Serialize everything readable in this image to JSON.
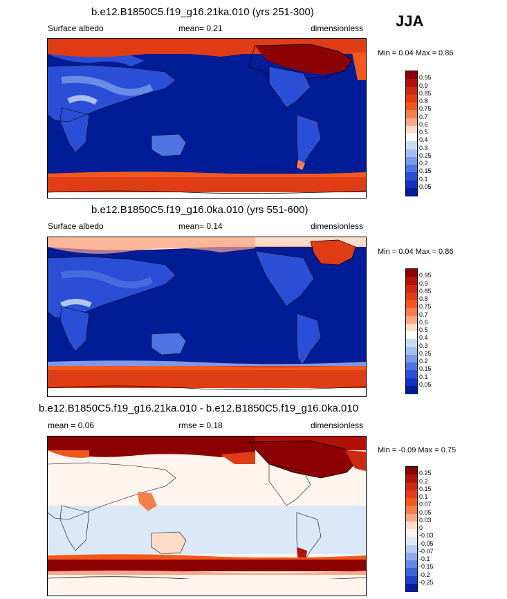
{
  "season": "JJA",
  "panels": [
    {
      "title": "b.e12.B1850C5.f19_g16.21ka.010 (yrs 251-300)",
      "left_label": "Surface albedo",
      "center_label": "mean=  0.21",
      "right_label": "dimensionless",
      "minmax": "Min =   0.04 Max =   0.86",
      "colorbar_labels": [
        "0.95",
        "0.9",
        "0.85",
        "0.8",
        "0.75",
        "0.7",
        "0.6",
        "0.5",
        "0.4",
        "0.3",
        "0.25",
        "0.2",
        "0.15",
        "0.1",
        "0.05"
      ],
      "colorbar_colors": [
        "#8b0000",
        "#b2110a",
        "#cc2a10",
        "#e03d16",
        "#f0581e",
        "#f67e4b",
        "#fba788",
        "#fddcc9",
        "#ffffff",
        "#c9dcf4",
        "#a3bff0",
        "#7b9bea",
        "#4d74e0",
        "#2a4fd6",
        "#1231c4",
        "#001b96"
      ]
    },
    {
      "title": "b.e12.B1850C5.f19_g16.0ka.010 (yrs 551-600)",
      "left_label": "Surface albedo",
      "center_label": "mean=  0.14",
      "right_label": "dimensionless",
      "minmax": "Min =   0.04 Max =   0.86",
      "colorbar_labels": [
        "0.95",
        "0.9",
        "0.85",
        "0.8",
        "0.75",
        "0.7",
        "0.6",
        "0.5",
        "0.4",
        "0.3",
        "0.25",
        "0.2",
        "0.15",
        "0.1",
        "0.05"
      ],
      "colorbar_colors": [
        "#8b0000",
        "#b2110a",
        "#cc2a10",
        "#e03d16",
        "#f0581e",
        "#f67e4b",
        "#fba788",
        "#fddcc9",
        "#ffffff",
        "#c9dcf4",
        "#a3bff0",
        "#7b9bea",
        "#4d74e0",
        "#2a4fd6",
        "#1231c4",
        "#001b96"
      ]
    },
    {
      "title": "b.e12.B1850C5.f19_g16.21ka.010 - b.e12.B1850C5.f19_g16.0ka.010",
      "left_label": "mean =   0.06",
      "center_label": "rmse =   0.18",
      "right_label": "dimensionless",
      "minmax": "Min =  -0.09 Max =   0.75",
      "colorbar_labels": [
        "0.25",
        "0.2",
        "0.15",
        "0.1",
        "0.07",
        "0.05",
        "0.03",
        "0",
        "-0.03",
        "-0.05",
        "-0.07",
        "-0.1",
        "-0.15",
        "-0.2",
        "-0.25"
      ],
      "colorbar_colors": [
        "#8b0000",
        "#b2110a",
        "#cc2a10",
        "#e03d16",
        "#f0581e",
        "#f67e4b",
        "#fba788",
        "#fddcc9",
        "#fff5ee",
        "#dbe8f7",
        "#b7cdf0",
        "#8eacea",
        "#6288e2",
        "#3a63d8",
        "#1e3fc8",
        "#061c9a"
      ]
    }
  ]
}
